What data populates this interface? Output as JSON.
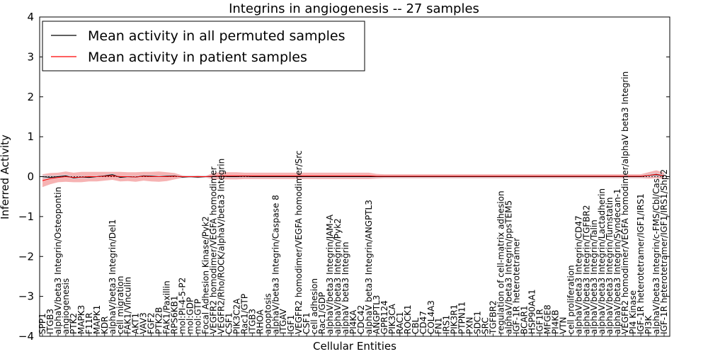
{
  "chart_data": {
    "type": "line",
    "title": "Integrins in angiogenesis -- 27 samples",
    "xlabel": "Cellular Entities",
    "ylabel": "Inferred Activity",
    "ylim": [
      -4,
      4
    ],
    "yticks": [
      -4,
      -3,
      -2,
      -1,
      0,
      1,
      2,
      3,
      4
    ],
    "ytick_labels": [
      "−4",
      "−3",
      "−2",
      "−1",
      "0",
      "1",
      "2",
      "3",
      "4"
    ],
    "legend": {
      "placement": "top-left",
      "entries": [
        {
          "label": "Mean activity in all permuted samples",
          "color": "#000000"
        },
        {
          "label": "Mean activity in patient samples",
          "color": "#ff0000"
        }
      ]
    },
    "categories": [
      "SPP1",
      "ITGB3",
      "alphaV/beta3 Integrin/Osteopontin",
      "angiogenesis",
      "PTK2",
      "MAPK3",
      "F11R",
      "MAPK1",
      "KDR",
      "alphaV/beta3 Integrin/Del1",
      "cell migration",
      "FAK1/Vinculin",
      "AKT1",
      "VAV3",
      "FGF2",
      "PTK2B",
      "FAK1/Paxillin",
      "RPS6KB1",
      "mol:PI-4-5-P2",
      "mol:GDP",
      "mol:GTP",
      "Focal Adhesion Kinase/Pyk2",
      "VEGFR2 homodimer/VEGFA homodimer",
      "VEGFR2/Rho/ROCK/alphaV/beta3 Integrin",
      "CSF1",
      "PIK3C2A",
      "Rac1/GTP",
      "ITGB3",
      "RHOA",
      "apoptosis",
      "alphaV/beta3 Integrin/Caspase 8",
      "ITGAV",
      "IGF1",
      "VEGFR2 homodimer/VEGFA homodimer/Src",
      "CSF1",
      "cell adhesion",
      "Rac1/GDP",
      "alphaV/beta3 Integrin/JAM-A",
      "alphaV/beta3 Integrin/Pyk2",
      "alphaV beta3 Integrin",
      "PI4KA",
      "CDC42",
      "alphaV beta3 Integrin/ANGPTL3",
      "ANGPTL3",
      "GPR124",
      "PIK3CA",
      "RAC1",
      "ROCK1",
      "CBL",
      "CD47",
      "COL4A3",
      "FN1",
      "IRS1",
      "PIK3R1",
      "PTPN11",
      "PXN",
      "SDC1",
      "SRC",
      "TGFBR2",
      "regulation of cell-matrix adhesion",
      "alphaV/beta3 Integrin/ppsTEM5",
      "IGF-1R heterotetramer",
      "BCAR1",
      "HSP90AA1",
      "IGF1R",
      "MFGE8",
      "PI4KB",
      "VTN",
      "cell proliferation",
      "alphaV/beta3 Integrin/CD47",
      "alphaV/beta3 Integrin/TGFBR2",
      "alphaV/beta3 Integrin/Talin",
      "alphaV/beta3 Integrin/Lactadherin",
      "alphaV/beta3 Integrin/Tumstatin",
      "alphaV/beta3 Integrin/Syndecan-1",
      "VEGFR2 homodimer/VEGFA homodimer/alphaV beta3 Integrin",
      "PI4 Kinase",
      "IGF-1R heterotetramer/IGF1/IRS1",
      "PI3K",
      "alphaV/beta3 Integrin/c-FMS/Cbl/Cas",
      "IGF-1R heterotetramer/IGF1/IRS1/Shp2"
    ],
    "series": [
      {
        "name": "Mean activity in all permuted samples",
        "values": [
          0.0,
          -0.02,
          0.0,
          0.02,
          -0.03,
          -0.01,
          -0.02,
          0.0,
          0.02,
          0.05,
          -0.02,
          0.0,
          -0.01,
          0.02,
          0.01,
          0.0,
          0.01,
          0.02,
          -0.01,
          0.0,
          -0.01,
          0.0,
          0.0,
          0.01,
          0.0,
          0.0,
          0.01,
          0.0,
          0.0,
          0.0,
          0.0,
          0.0,
          0.0,
          0.0,
          0.0,
          0.0,
          0.0,
          0.0,
          0.0,
          0.0,
          0.0,
          0.0,
          0.0,
          0.0,
          0.0,
          0.0,
          0.0,
          0.0,
          0.0,
          0.0,
          0.0,
          0.0,
          0.0,
          0.0,
          0.0,
          0.0,
          0.0,
          0.0,
          0.0,
          0.0,
          0.0,
          0.0,
          0.0,
          0.0,
          0.0,
          0.0,
          0.0,
          0.0,
          0.0,
          0.0,
          0.0,
          0.0,
          0.0,
          0.0,
          0.0,
          0.0,
          0.0,
          0.0,
          0.03,
          0.05,
          0.02
        ]
      },
      {
        "name": "Mean activity in patient samples",
        "values": [
          -0.1,
          -0.05,
          -0.02,
          0.0,
          -0.02,
          -0.01,
          0.0,
          0.0,
          0.01,
          0.02,
          0.0,
          0.0,
          -0.01,
          0.01,
          0.0,
          0.0,
          0.0,
          0.01,
          0.0,
          0.0,
          0.0,
          0.0,
          0.01,
          0.02,
          0.02,
          0.02,
          0.02,
          0.02,
          0.02,
          0.02,
          0.02,
          0.02,
          0.02,
          0.02,
          0.02,
          0.02,
          0.02,
          0.02,
          0.02,
          0.02,
          0.02,
          0.02,
          0.02,
          0.01,
          0.01,
          0.01,
          0.01,
          0.01,
          0.01,
          0.01,
          0.01,
          0.01,
          0.01,
          0.01,
          0.01,
          0.01,
          0.01,
          0.01,
          0.01,
          0.01,
          0.01,
          0.01,
          0.01,
          0.01,
          0.01,
          0.01,
          0.01,
          0.01,
          0.01,
          0.01,
          0.01,
          0.01,
          0.01,
          0.01,
          0.01,
          0.01,
          0.01,
          0.01,
          0.03,
          0.06,
          0.02
        ]
      }
    ],
    "bands": {
      "permuted_halfwidth": [
        0.05,
        0.05,
        0.04,
        0.04,
        0.04,
        0.04,
        0.03,
        0.03,
        0.03,
        0.03,
        0.03,
        0.03,
        0.03,
        0.03,
        0.03,
        0.03,
        0.03,
        0.03,
        0.03,
        0.03,
        0.03,
        0.03,
        0.03,
        0.03,
        0.03,
        0.03,
        0.03,
        0.03,
        0.03,
        0.03,
        0.03,
        0.03,
        0.03,
        0.03,
        0.03,
        0.03,
        0.03,
        0.03,
        0.03,
        0.03,
        0.03,
        0.03,
        0.03,
        0.03,
        0.03,
        0.03,
        0.03,
        0.03,
        0.03,
        0.03,
        0.03,
        0.03,
        0.03,
        0.03,
        0.03,
        0.03,
        0.03,
        0.03,
        0.03,
        0.03,
        0.03,
        0.03,
        0.03,
        0.03,
        0.03,
        0.03,
        0.03,
        0.03,
        0.03,
        0.03,
        0.03,
        0.03,
        0.03,
        0.03,
        0.03,
        0.03,
        0.03,
        0.03,
        0.04,
        0.05,
        0.04
      ],
      "patient_halfwidth": [
        0.16,
        0.14,
        0.12,
        0.13,
        0.12,
        0.13,
        0.12,
        0.12,
        0.11,
        0.1,
        0.12,
        0.11,
        0.12,
        0.11,
        0.12,
        0.13,
        0.11,
        0.08,
        0.03,
        0.02,
        0.03,
        0.02,
        0.08,
        0.09,
        0.09,
        0.09,
        0.08,
        0.08,
        0.08,
        0.08,
        0.08,
        0.08,
        0.08,
        0.08,
        0.08,
        0.08,
        0.08,
        0.08,
        0.08,
        0.08,
        0.08,
        0.08,
        0.08,
        0.06,
        0.05,
        0.05,
        0.05,
        0.05,
        0.05,
        0.05,
        0.05,
        0.05,
        0.05,
        0.05,
        0.05,
        0.05,
        0.05,
        0.05,
        0.05,
        0.05,
        0.05,
        0.05,
        0.05,
        0.05,
        0.05,
        0.05,
        0.05,
        0.05,
        0.05,
        0.05,
        0.05,
        0.05,
        0.05,
        0.05,
        0.05,
        0.05,
        0.05,
        0.05,
        0.08,
        0.1,
        0.08
      ]
    },
    "grid": false,
    "colors": {
      "permuted": "#000000",
      "patient": "#ff0000",
      "patient_band": "#f4a6a6",
      "permuted_band": "#c9d3df"
    }
  }
}
